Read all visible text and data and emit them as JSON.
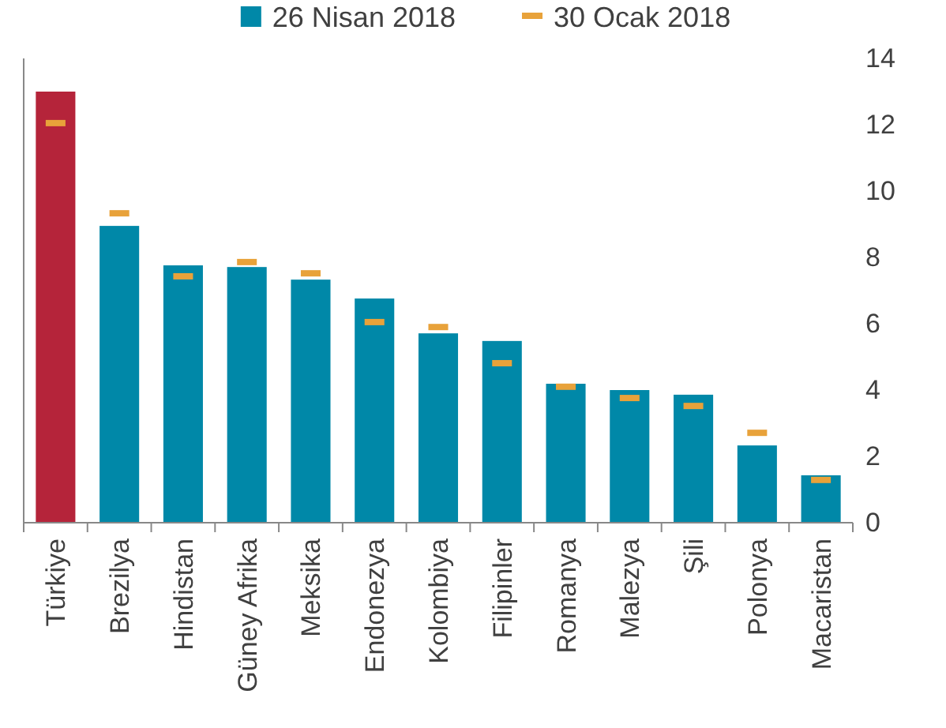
{
  "chart_data": {
    "type": "bar",
    "categories": [
      "Türkiye",
      "Brezilya",
      "Hindistan",
      "Güney Afrika",
      "Meksika",
      "Endonezya",
      "Kolombiya",
      "Filipinler",
      "Romanya",
      "Malezya",
      "Şili",
      "Polonya",
      "Macaristan"
    ],
    "series": [
      {
        "name": "26 Nisan 2018",
        "type": "bar",
        "color": "#0088a8",
        "colors": [
          "#b5243a",
          "#0088a8",
          "#0088a8",
          "#0088a8",
          "#0088a8",
          "#0088a8",
          "#0088a8",
          "#0088a8",
          "#0088a8",
          "#0088a8",
          "#0088a8",
          "#0088a8",
          "#0088a8"
        ],
        "values": [
          13.0,
          8.95,
          7.76,
          7.71,
          7.33,
          6.76,
          5.71,
          5.48,
          4.19,
          4.0,
          3.86,
          2.33,
          1.43
        ]
      },
      {
        "name": "30 Ocak 2018",
        "type": "scatter",
        "color": "#e8a23a",
        "values": [
          12.05,
          9.33,
          7.43,
          7.86,
          7.52,
          6.05,
          5.9,
          4.81,
          4.1,
          3.76,
          3.52,
          2.71,
          1.29
        ]
      }
    ],
    "ylim": [
      0,
      14
    ],
    "yticks": [
      0,
      2,
      4,
      6,
      8,
      10,
      12,
      14
    ],
    "legend": "top",
    "grid": false
  }
}
